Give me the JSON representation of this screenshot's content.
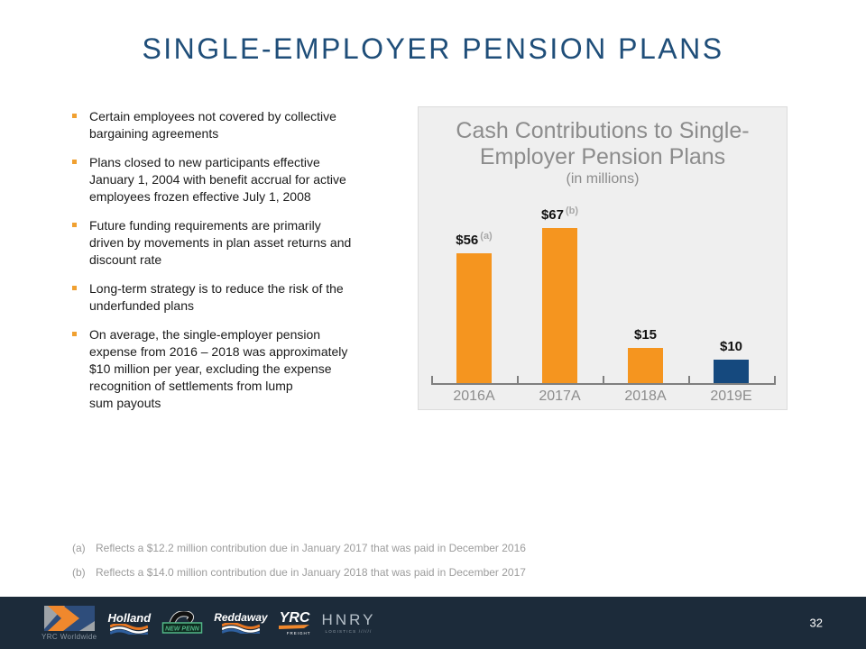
{
  "title": "SINGLE-EMPLOYER PENSION PLANS",
  "bullets": [
    "Certain employees not covered by collective bargaining agreements",
    "Plans closed to new participants effective January 1, 2004 with benefit accrual for active employees frozen effective July 1, 2008",
    "Future funding requirements are primarily driven by movements in plan asset returns and discount rate",
    "Long-term strategy is to reduce the risk of the underfunded plans",
    "On average, the single-employer pension expense from 2016 – 2018 was approximately $10 million per year, excluding the expense recognition of settlements from lump\nsum payouts"
  ],
  "chart": {
    "title": "Cash Contributions to Single-Employer Pension Plans",
    "subtitle": "(in millions)"
  },
  "chart_data": {
    "type": "bar",
    "title": "Cash Contributions to Single-Employer Pension Plans",
    "subtitle": "(in millions)",
    "categories": [
      "2016A",
      "2017A",
      "2018A",
      "2019E"
    ],
    "values": [
      56,
      67,
      15,
      10
    ],
    "value_labels": [
      "$56",
      "$67",
      "$15",
      "$10"
    ],
    "footnote_markers": [
      "(a)",
      "(b)",
      "",
      ""
    ],
    "bar_colors": [
      "#F5951F",
      "#F5951F",
      "#F5951F",
      "#15497E"
    ],
    "ylim": [
      0,
      70
    ],
    "gridlines": false,
    "legend": false
  },
  "footnotes": [
    {
      "marker": "(a)",
      "text": "Reflects a $12.2 million contribution due in January 2017 that was paid in December 2016"
    },
    {
      "marker": "(b)",
      "text": "Reflects a $14.0 million contribution due in January 2018 that was paid in December 2017"
    }
  ],
  "footer": {
    "page_number": "32",
    "logos": {
      "yrc_worldwide_caption": "YRC Worldwide",
      "holland": "Holland",
      "new_penn": "NEW PENN",
      "reddaway": "Reddaway",
      "yrc_freight": "YRC",
      "yrc_freight_sub": "FREIGHT",
      "hnry": "HNRY",
      "hnry_sub": "LOGISTICS //////"
    }
  },
  "colors": {
    "title_blue": "#1F4E79",
    "bar_orange": "#F5951F",
    "bar_navy": "#15497E",
    "bullet_orange": "#F0A030",
    "chart_gray_text": "#8C8C8C",
    "footnote_gray": "#9C9C9C",
    "panel_bg": "#EFEFEF",
    "footer_bg": "#1C2B3A"
  }
}
